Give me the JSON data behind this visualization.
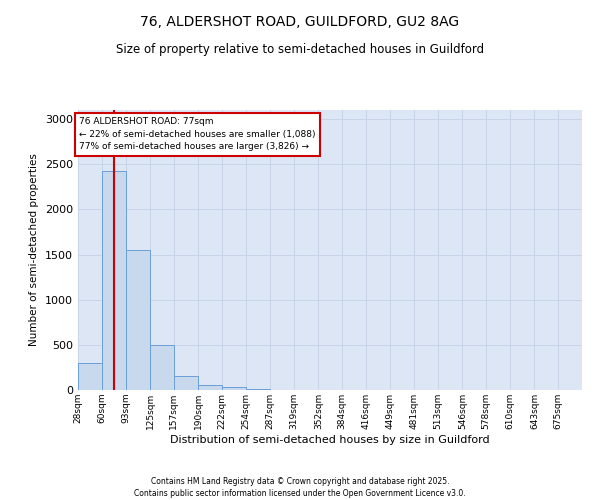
{
  "title_line1": "76, ALDERSHOT ROAD, GUILDFORD, GU2 8AG",
  "title_line2": "Size of property relative to semi-detached houses in Guildford",
  "xlabel": "Distribution of semi-detached houses by size in Guildford",
  "ylabel": "Number of semi-detached properties",
  "property_size": 77,
  "property_label": "76 ALDERSHOT ROAD: 77sqm",
  "pct_smaller": 22,
  "count_smaller": 1088,
  "pct_larger": 77,
  "count_larger": 3826,
  "bin_edges": [
    28,
    60,
    93,
    125,
    157,
    190,
    222,
    254,
    287,
    319,
    352,
    384,
    416,
    449,
    481,
    513,
    546,
    578,
    610,
    643,
    675
  ],
  "bin_labels": [
    "28sqm",
    "60sqm",
    "93sqm",
    "125sqm",
    "157sqm",
    "190sqm",
    "222sqm",
    "254sqm",
    "287sqm",
    "319sqm",
    "352sqm",
    "384sqm",
    "416sqm",
    "449sqm",
    "481sqm",
    "513sqm",
    "546sqm",
    "578sqm",
    "610sqm",
    "643sqm",
    "675sqm"
  ],
  "bar_values": [
    300,
    2430,
    1550,
    500,
    150,
    60,
    30,
    10,
    5,
    3,
    2,
    1,
    1,
    0,
    0,
    0,
    0,
    0,
    0,
    0
  ],
  "bar_color": "#c8d8ed",
  "bar_edge_color": "#6a9fd8",
  "vline_color": "#cc0000",
  "annotation_box_color": "#cc0000",
  "grid_color": "#c8d4e8",
  "background_color": "#dde6f5",
  "ylim": [
    0,
    3100
  ],
  "yticks": [
    0,
    500,
    1000,
    1500,
    2000,
    2500,
    3000
  ],
  "footer_line1": "Contains HM Land Registry data © Crown copyright and database right 2025.",
  "footer_line2": "Contains public sector information licensed under the Open Government Licence v3.0."
}
